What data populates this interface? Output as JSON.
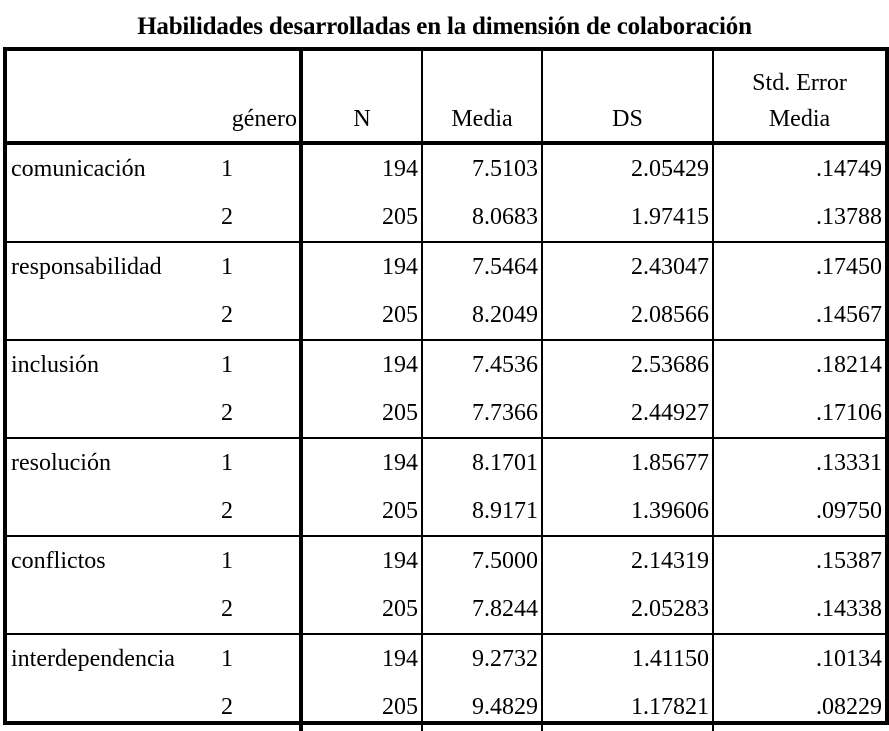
{
  "title": "Habilidades desarrolladas en la dimensión de colaboración",
  "table": {
    "headers": {
      "variable": "",
      "genero": "género",
      "n": "N",
      "media": "Media",
      "ds": "DS",
      "se_line1": "Std. Error",
      "se_line2": "Media"
    },
    "groups": [
      {
        "variable": "comunicación",
        "rows": [
          {
            "genero": "1",
            "n": "194",
            "media": "7.5103",
            "ds": "2.05429",
            "se": ".14749"
          },
          {
            "genero": "2",
            "n": "205",
            "media": "8.0683",
            "ds": "1.97415",
            "se": ".13788"
          }
        ]
      },
      {
        "variable": "responsabilidad",
        "rows": [
          {
            "genero": "1",
            "n": "194",
            "media": "7.5464",
            "ds": "2.43047",
            "se": ".17450"
          },
          {
            "genero": "2",
            "n": "205",
            "media": "8.2049",
            "ds": "2.08566",
            "se": ".14567"
          }
        ]
      },
      {
        "variable": "inclusión",
        "rows": [
          {
            "genero": "1",
            "n": "194",
            "media": "7.4536",
            "ds": "2.53686",
            "se": ".18214"
          },
          {
            "genero": "2",
            "n": "205",
            "media": "7.7366",
            "ds": "2.44927",
            "se": ".17106"
          }
        ]
      },
      {
        "variable": "resolución",
        "rows": [
          {
            "genero": "1",
            "n": "194",
            "media": "8.1701",
            "ds": "1.85677",
            "se": ".13331"
          },
          {
            "genero": "2",
            "n": "205",
            "media": "8.9171",
            "ds": "1.39606",
            "se": ".09750"
          }
        ]
      },
      {
        "variable": "conflictos",
        "rows": [
          {
            "genero": "1",
            "n": "194",
            "media": "7.5000",
            "ds": "2.14319",
            "se": ".15387"
          },
          {
            "genero": "2",
            "n": "205",
            "media": "7.8244",
            "ds": "2.05283",
            "se": ".14338"
          }
        ]
      },
      {
        "variable": "interdependencia",
        "rows": [
          {
            "genero": "1",
            "n": "194",
            "media": "9.2732",
            "ds": "1.41150",
            "se": ".10134"
          },
          {
            "genero": "2",
            "n": "205",
            "media": "9.4829",
            "ds": "1.17821",
            "se": ".08229"
          }
        ]
      }
    ]
  }
}
